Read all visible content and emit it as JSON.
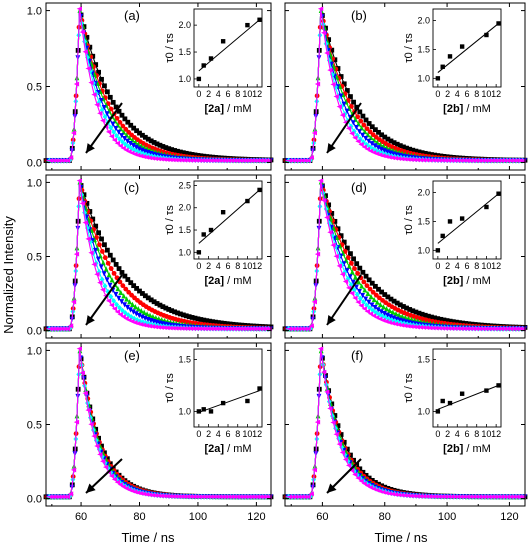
{
  "figure": {
    "ylabel": "Normalized Intensity",
    "xlabel": "Time / ns",
    "x_ticks": [
      "60",
      "80",
      "100",
      "120"
    ],
    "y_ticks": [
      "0.0",
      "0.5",
      "1.0"
    ]
  },
  "chart_data": [
    {
      "panel": "(a)",
      "type": "line",
      "xlim": [
        48,
        125
      ],
      "ylim": [
        -0.05,
        1.05
      ],
      "decay_series": [
        {
          "color": "#000000",
          "marker": "square",
          "tau": 12.0
        },
        {
          "color": "#ff0000",
          "marker": "circle",
          "tau": 10.0
        },
        {
          "color": "#00cc00",
          "marker": "triangle",
          "tau": 9.0
        },
        {
          "color": "#0000ff",
          "marker": "triangle-down",
          "tau": 8.0
        },
        {
          "color": "#00ffff",
          "marker": "diamond",
          "tau": 7.0
        },
        {
          "color": "#ff00ff",
          "marker": "triangle-left",
          "tau": 6.0
        }
      ],
      "inset": {
        "type": "scatter",
        "xlabel_bold": "2a",
        "xlabel_unit": " / mM",
        "ylabel": "τ0 / τs",
        "xlim": [
          -1,
          13
        ],
        "ylim": [
          0.85,
          2.3
        ],
        "xticks": [
          0,
          2,
          4,
          6,
          8,
          10,
          12
        ],
        "yticks": [
          1.0,
          1.5,
          2.0
        ],
        "points": [
          [
            0,
            1.0
          ],
          [
            1,
            1.25
          ],
          [
            2.5,
            1.38
          ],
          [
            5,
            1.7
          ],
          [
            10,
            2.0
          ],
          [
            12.5,
            2.1
          ]
        ],
        "fit": [
          [
            0,
            1.15
          ],
          [
            12.5,
            2.1
          ]
        ]
      }
    },
    {
      "panel": "(b)",
      "type": "line",
      "xlim": [
        48,
        125
      ],
      "ylim": [
        -0.05,
        1.05
      ],
      "decay_series": [
        {
          "color": "#000000",
          "marker": "square",
          "tau": 11.0
        },
        {
          "color": "#ff0000",
          "marker": "circle",
          "tau": 9.5
        },
        {
          "color": "#00cc00",
          "marker": "triangle",
          "tau": 8.5
        },
        {
          "color": "#0000ff",
          "marker": "triangle-down",
          "tau": 7.5
        },
        {
          "color": "#00ffff",
          "marker": "diamond",
          "tau": 6.5
        },
        {
          "color": "#ff00ff",
          "marker": "triangle-left",
          "tau": 5.8
        }
      ],
      "inset": {
        "type": "scatter",
        "xlabel_bold": "2b",
        "xlabel_unit": " / mM",
        "ylabel": "τ0 / τs",
        "xlim": [
          -1,
          13
        ],
        "ylim": [
          0.85,
          2.2
        ],
        "xticks": [
          0,
          2,
          4,
          6,
          8,
          10,
          12
        ],
        "yticks": [
          1.0,
          1.5,
          2.0
        ],
        "points": [
          [
            0,
            1.0
          ],
          [
            1,
            1.2
          ],
          [
            2.5,
            1.38
          ],
          [
            5,
            1.55
          ],
          [
            10,
            1.75
          ],
          [
            12.5,
            1.95
          ]
        ],
        "fit": [
          [
            0,
            1.1
          ],
          [
            12.5,
            1.95
          ]
        ]
      }
    },
    {
      "panel": "(c)",
      "type": "line",
      "xlim": [
        48,
        125
      ],
      "ylim": [
        -0.05,
        1.05
      ],
      "decay_series": [
        {
          "color": "#000000",
          "marker": "square",
          "tau": 15.0
        },
        {
          "color": "#ff0000",
          "marker": "circle",
          "tau": 12.0
        },
        {
          "color": "#00cc00",
          "marker": "triangle",
          "tau": 10.0
        },
        {
          "color": "#0000ff",
          "marker": "triangle-down",
          "tau": 8.5
        },
        {
          "color": "#00ffff",
          "marker": "diamond",
          "tau": 7.0
        },
        {
          "color": "#ff00ff",
          "marker": "triangle-left",
          "tau": 6.0
        }
      ],
      "inset": {
        "type": "scatter",
        "xlabel_bold": "2a",
        "xlabel_unit": " / mM",
        "ylabel": "τ0 / τs",
        "xlim": [
          -1,
          13
        ],
        "ylim": [
          0.85,
          2.6
        ],
        "xticks": [
          0,
          2,
          4,
          6,
          8,
          10,
          12
        ],
        "yticks": [
          1.0,
          1.5,
          2.0,
          2.5
        ],
        "points": [
          [
            0,
            1.0
          ],
          [
            1,
            1.4
          ],
          [
            2.5,
            1.5
          ],
          [
            5,
            1.9
          ],
          [
            10,
            2.15
          ],
          [
            12.5,
            2.4
          ]
        ],
        "fit": [
          [
            0,
            1.2
          ],
          [
            12.5,
            2.4
          ]
        ]
      }
    },
    {
      "panel": "(d)",
      "type": "line",
      "xlim": [
        48,
        125
      ],
      "ylim": [
        -0.05,
        1.05
      ],
      "decay_series": [
        {
          "color": "#000000",
          "marker": "square",
          "tau": 14.0
        },
        {
          "color": "#ff0000",
          "marker": "circle",
          "tau": 12.0
        },
        {
          "color": "#00cc00",
          "marker": "triangle",
          "tau": 10.5
        },
        {
          "color": "#0000ff",
          "marker": "triangle-down",
          "tau": 9.0
        },
        {
          "color": "#00ffff",
          "marker": "diamond",
          "tau": 8.0
        },
        {
          "color": "#ff00ff",
          "marker": "triangle-left",
          "tau": 7.0
        }
      ],
      "inset": {
        "type": "scatter",
        "xlabel_bold": "2b",
        "xlabel_unit": " / mM",
        "ylabel": "τ0 / τs",
        "xlim": [
          -1,
          13
        ],
        "ylim": [
          0.85,
          2.2
        ],
        "xticks": [
          0,
          2,
          4,
          6,
          8,
          10,
          12
        ],
        "yticks": [
          1.0,
          1.5,
          2.0
        ],
        "points": [
          [
            0,
            1.0
          ],
          [
            1,
            1.25
          ],
          [
            2.5,
            1.5
          ],
          [
            5,
            1.55
          ],
          [
            10,
            1.75
          ],
          [
            12.5,
            1.98
          ]
        ],
        "fit": [
          [
            0,
            1.12
          ],
          [
            12.5,
            1.98
          ]
        ]
      }
    },
    {
      "panel": "(e)",
      "type": "line",
      "xlim": [
        48,
        125
      ],
      "ylim": [
        -0.05,
        1.05
      ],
      "decay_series": [
        {
          "color": "#000000",
          "marker": "square",
          "tau": 7.0
        },
        {
          "color": "#ff0000",
          "marker": "circle",
          "tau": 6.8
        },
        {
          "color": "#00cc00",
          "marker": "triangle",
          "tau": 6.5
        },
        {
          "color": "#0000ff",
          "marker": "triangle-down",
          "tau": 6.2
        },
        {
          "color": "#00ffff",
          "marker": "diamond",
          "tau": 5.9
        },
        {
          "color": "#ff00ff",
          "marker": "triangle-left",
          "tau": 5.6
        }
      ],
      "inset": {
        "type": "scatter",
        "xlabel_bold": "2a",
        "xlabel_unit": " / mM",
        "ylabel": "τ0 / τs",
        "xlim": [
          -1,
          13
        ],
        "ylim": [
          0.85,
          1.6
        ],
        "xticks": [
          0,
          2,
          4,
          6,
          8,
          10,
          12
        ],
        "yticks": [
          1.0,
          1.5
        ],
        "points": [
          [
            0,
            1.0
          ],
          [
            1,
            1.02
          ],
          [
            2.5,
            1.0
          ],
          [
            5,
            1.08
          ],
          [
            10,
            1.1
          ],
          [
            12.5,
            1.22
          ]
        ],
        "fit": [
          [
            0,
            0.99
          ],
          [
            12.5,
            1.2
          ]
        ]
      }
    },
    {
      "panel": "(f)",
      "type": "line",
      "xlim": [
        48,
        125
      ],
      "ylim": [
        -0.05,
        1.05
      ],
      "decay_series": [
        {
          "color": "#000000",
          "marker": "square",
          "tau": 7.5
        },
        {
          "color": "#ff0000",
          "marker": "circle",
          "tau": 7.0
        },
        {
          "color": "#00cc00",
          "marker": "triangle",
          "tau": 6.7
        },
        {
          "color": "#0000ff",
          "marker": "triangle-down",
          "tau": 6.4
        },
        {
          "color": "#00ffff",
          "marker": "diamond",
          "tau": 6.1
        },
        {
          "color": "#ff00ff",
          "marker": "triangle-left",
          "tau": 5.8
        }
      ],
      "inset": {
        "type": "scatter",
        "xlabel_bold": "2b",
        "xlabel_unit": " / mM",
        "ylabel": "τ0 / τs",
        "xlim": [
          -1,
          13
        ],
        "ylim": [
          0.85,
          1.6
        ],
        "xticks": [
          0,
          2,
          4,
          6,
          8,
          10,
          12
        ],
        "yticks": [
          1.0,
          1.5
        ],
        "points": [
          [
            0,
            1.0
          ],
          [
            1,
            1.1
          ],
          [
            2.5,
            1.08
          ],
          [
            5,
            1.17
          ],
          [
            10,
            1.2
          ],
          [
            12.5,
            1.25
          ]
        ],
        "fit": [
          [
            0,
            1.02
          ],
          [
            12.5,
            1.25
          ]
        ]
      }
    }
  ]
}
